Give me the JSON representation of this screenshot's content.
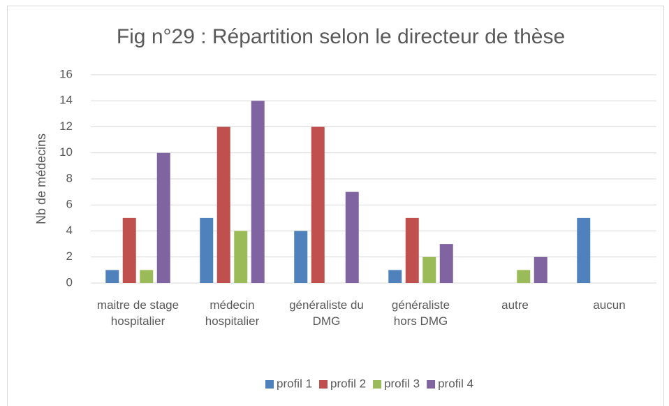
{
  "chart_data": {
    "type": "bar",
    "title": "Fig n°29 : Répartition selon le directeur de thèse",
    "y_label": "Nb de médecins",
    "categories": [
      "maitre de stage hospitalier",
      "médecin hospitalier",
      "généraliste du DMG",
      "généraliste hors DMG",
      "autre",
      "aucun"
    ],
    "series": [
      {
        "name": "profil 1",
        "color": "#4f81bd",
        "values": [
          1,
          5,
          4,
          1,
          0,
          5
        ]
      },
      {
        "name": "profil 2",
        "color": "#c0504d",
        "values": [
          5,
          12,
          12,
          5,
          0,
          0
        ]
      },
      {
        "name": "profil 3",
        "color": "#9bbb59",
        "values": [
          1,
          4,
          0,
          2,
          1,
          0
        ]
      },
      {
        "name": "profil 4",
        "color": "#8064a2",
        "values": [
          10,
          14,
          7,
          3,
          2,
          0
        ]
      }
    ],
    "ylim": [
      0,
      16
    ],
    "yticks": [
      0,
      2,
      4,
      6,
      8,
      10,
      12,
      14,
      16
    ],
    "grid": true,
    "legend": "bottom"
  }
}
